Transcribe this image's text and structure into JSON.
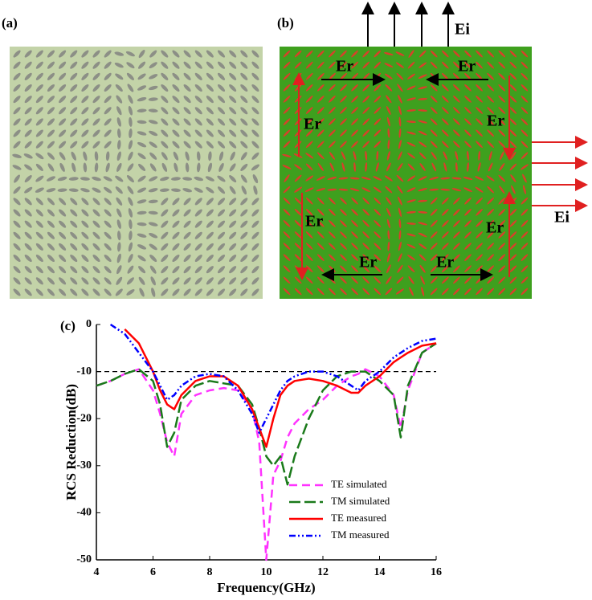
{
  "figure": {
    "panel_labels": [
      "(a)",
      "(b)",
      "(c)"
    ],
    "b_labels": [
      "Er",
      "Er",
      "Er",
      "Er",
      "Er",
      "Er",
      "Er",
      "Er",
      "Ei",
      "Ei"
    ]
  },
  "chart_data": {
    "type": "line",
    "xlabel": "Frequency(GHz)",
    "ylabel": "RCS Reduction(dB)",
    "xlim": [
      4,
      16
    ],
    "ylim": [
      -50,
      0
    ],
    "xticks": [
      4,
      6,
      8,
      10,
      12,
      14,
      16
    ],
    "yticks": [
      0,
      -10,
      -20,
      -30,
      -40,
      -50
    ],
    "reference_line": -10,
    "x": [
      4,
      4.5,
      5,
      5.5,
      6,
      6.25,
      6.5,
      6.75,
      7,
      7.5,
      8,
      8.5,
      9,
      9.5,
      9.75,
      10,
      10.25,
      10.5,
      10.75,
      11,
      11.5,
      12,
      12.5,
      13,
      13.25,
      13.5,
      14,
      14.5,
      14.75,
      15,
      15.5,
      16
    ],
    "series": [
      {
        "name": "TE simulated",
        "color": "#ff33ff",
        "style": "dashed",
        "values": [
          -13,
          -12,
          -10.5,
          -9.5,
          -14,
          -19,
          -25,
          -28,
          -19,
          -15,
          -14,
          -13.5,
          -14,
          -18,
          -25,
          -50,
          -32,
          -29,
          -24,
          -21,
          -18,
          -16,
          -13,
          -11,
          -10.5,
          -9.5,
          -11,
          -15,
          -22,
          -14,
          -6,
          -4
        ]
      },
      {
        "name": "TM simulated",
        "color": "#1a7a1a",
        "style": "longdashed",
        "values": [
          -13,
          -12,
          -10.5,
          -9.5,
          -12,
          -17,
          -26,
          -23,
          -16,
          -13,
          -12,
          -12.5,
          -13,
          -17,
          -22,
          -28,
          -30,
          -28,
          -34,
          -28,
          -20,
          -14,
          -11,
          -10,
          -10,
          -10,
          -12,
          -15,
          -24,
          -13,
          -6,
          -4
        ]
      },
      {
        "name": "TE measured",
        "color": "#ff0000",
        "style": "solid",
        "values": [
          null,
          null,
          -1,
          -4,
          -10,
          -14,
          -17,
          -18,
          -15,
          -12,
          -11,
          -11,
          -13,
          -18,
          -22,
          -26,
          -20,
          -15,
          -13,
          -12,
          -11.5,
          -12,
          -13,
          -14.5,
          -14.5,
          -13,
          -11,
          -8,
          -7,
          -6,
          -4.5,
          -4
        ]
      },
      {
        "name": "TM measured",
        "color": "#0000ff",
        "style": "dashdotdot",
        "values": [
          null,
          0,
          -2,
          -6,
          -10,
          -13,
          -16,
          -15,
          -13,
          -11,
          -10.5,
          -11,
          -14,
          -19,
          -23,
          -20,
          -17,
          -14,
          -12,
          -11,
          -10,
          -10,
          -11,
          -13,
          -14,
          -12,
          -10,
          -7,
          -6,
          -5,
          -3.5,
          -3
        ]
      }
    ],
    "legend": "lower right"
  }
}
